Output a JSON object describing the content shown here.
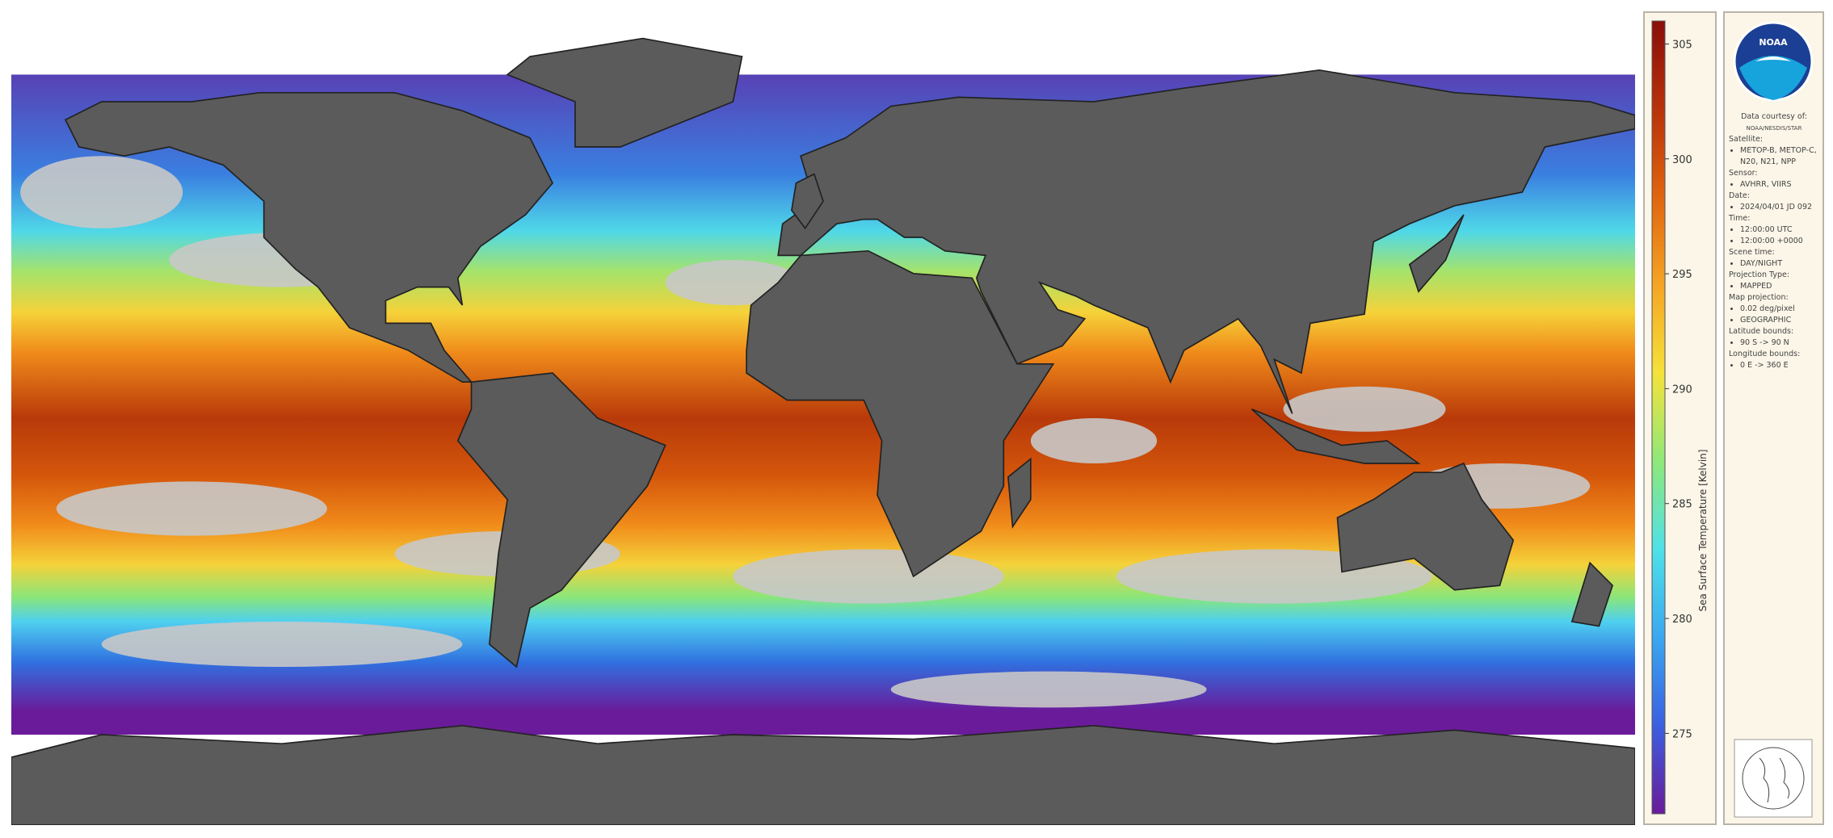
{
  "colorbar": {
    "label": "Sea Surface Temperature [Kelvin]",
    "clim": [
      271.5,
      306
    ],
    "ticks": [
      275,
      280,
      285,
      290,
      295,
      300,
      305
    ],
    "colors": [
      "#6a1b9a",
      "#3b5fe0",
      "#3aa8f0",
      "#4fe0e8",
      "#8ee87a",
      "#f5e23a",
      "#f5a524",
      "#e0650f",
      "#b8320a",
      "#8a0e0a"
    ]
  },
  "logo": "NOAA",
  "info": {
    "courtesy_label": "Data courtesy of:",
    "courtesy": "NOAA/NESDIS/STAR",
    "fields": [
      {
        "label": "Satellite:",
        "items": [
          "METOP-B, METOP-C, N20, N21, NPP"
        ]
      },
      {
        "label": "Sensor:",
        "items": [
          "AVHRR, VIIRS"
        ]
      },
      {
        "label": "Date:",
        "items": [
          "2024/04/01 JD 092"
        ]
      },
      {
        "label": "Time:",
        "items": [
          "12:00:00 UTC",
          "12:00:00 +0000"
        ]
      },
      {
        "label": "Scene time:",
        "items": [
          "DAY/NIGHT"
        ]
      },
      {
        "label": "Projection Type:",
        "items": [
          "MAPPED"
        ]
      },
      {
        "label": "Map projection:",
        "items": [
          "0.02 deg/pixel",
          "GEOGRAPHIC"
        ]
      },
      {
        "label": "Latitude bounds:",
        "items": [
          "90 S -> 90 N"
        ]
      },
      {
        "label": "Longitude bounds:",
        "items": [
          "0 E -> 360 E"
        ]
      }
    ]
  }
}
